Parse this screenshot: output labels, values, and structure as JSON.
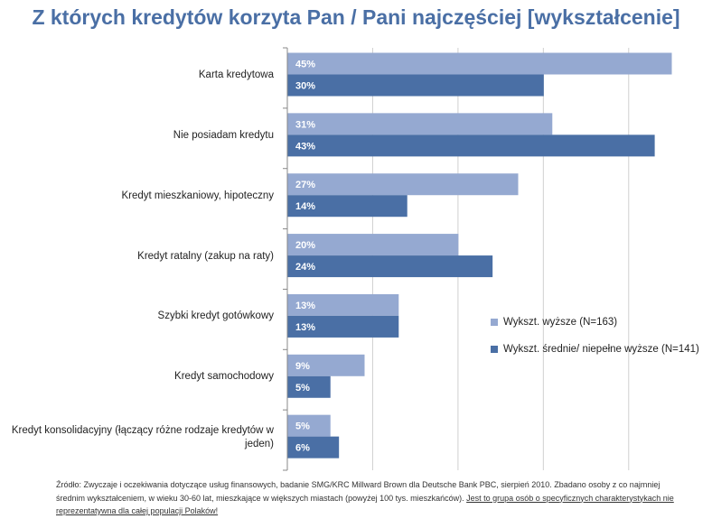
{
  "title": "Z których kredytów korzyta Pan / Pani najczęściej [wykształcenie]",
  "chart_data": {
    "type": "bar",
    "orientation": "horizontal",
    "categories": [
      "Karta kredytowa",
      "Nie posiadam  kredytu",
      "Kredyt mieszkaniowy,  hipoteczny",
      "Kredyt ratalny  (zakup  na raty)",
      "Szybki kredyt gotówkowy",
      "Kredyt samochodowy",
      "Kredyt konsolidacyjny  (łączący różne rodzaje kredytów w jeden)"
    ],
    "series": [
      {
        "name": "Wykszt. wyższe  (N=163)",
        "color": "#95a9d1",
        "values": [
          45,
          31,
          27,
          20,
          13,
          9,
          5
        ],
        "labels": [
          "45%",
          "31%",
          "27%",
          "20%",
          "13%",
          "9%",
          "5%"
        ]
      },
      {
        "name": "Wykszt. średnie/ niepełne wyższe  (N=141)",
        "color": "#4a6fa5",
        "values": [
          30,
          43,
          14,
          24,
          13,
          5,
          6
        ],
        "labels": [
          "30%",
          "43%",
          "14%",
          "24%",
          "13%",
          "5%",
          "6%"
        ]
      }
    ],
    "xlim": [
      0,
      45
    ],
    "grid": true,
    "legend_position": "right-middle"
  },
  "source": {
    "text": "Źródło: Zwyczaje i oczekiwania dotyczące usług finansowych, badanie SMG/KRC Millward Brown dla Deutsche Bank PBC, sierpień 2010. Zbadano osoby z co najmniej średnim wykształceniem, w wieku 30-60 lat, mieszkające w większych miastach (powyżej 100 tys. mieszkańców). ",
    "note": "Jest to grupa osób o specyficznych charakterystykach nie reprezentatywna dla całej populacji Polaków!"
  }
}
